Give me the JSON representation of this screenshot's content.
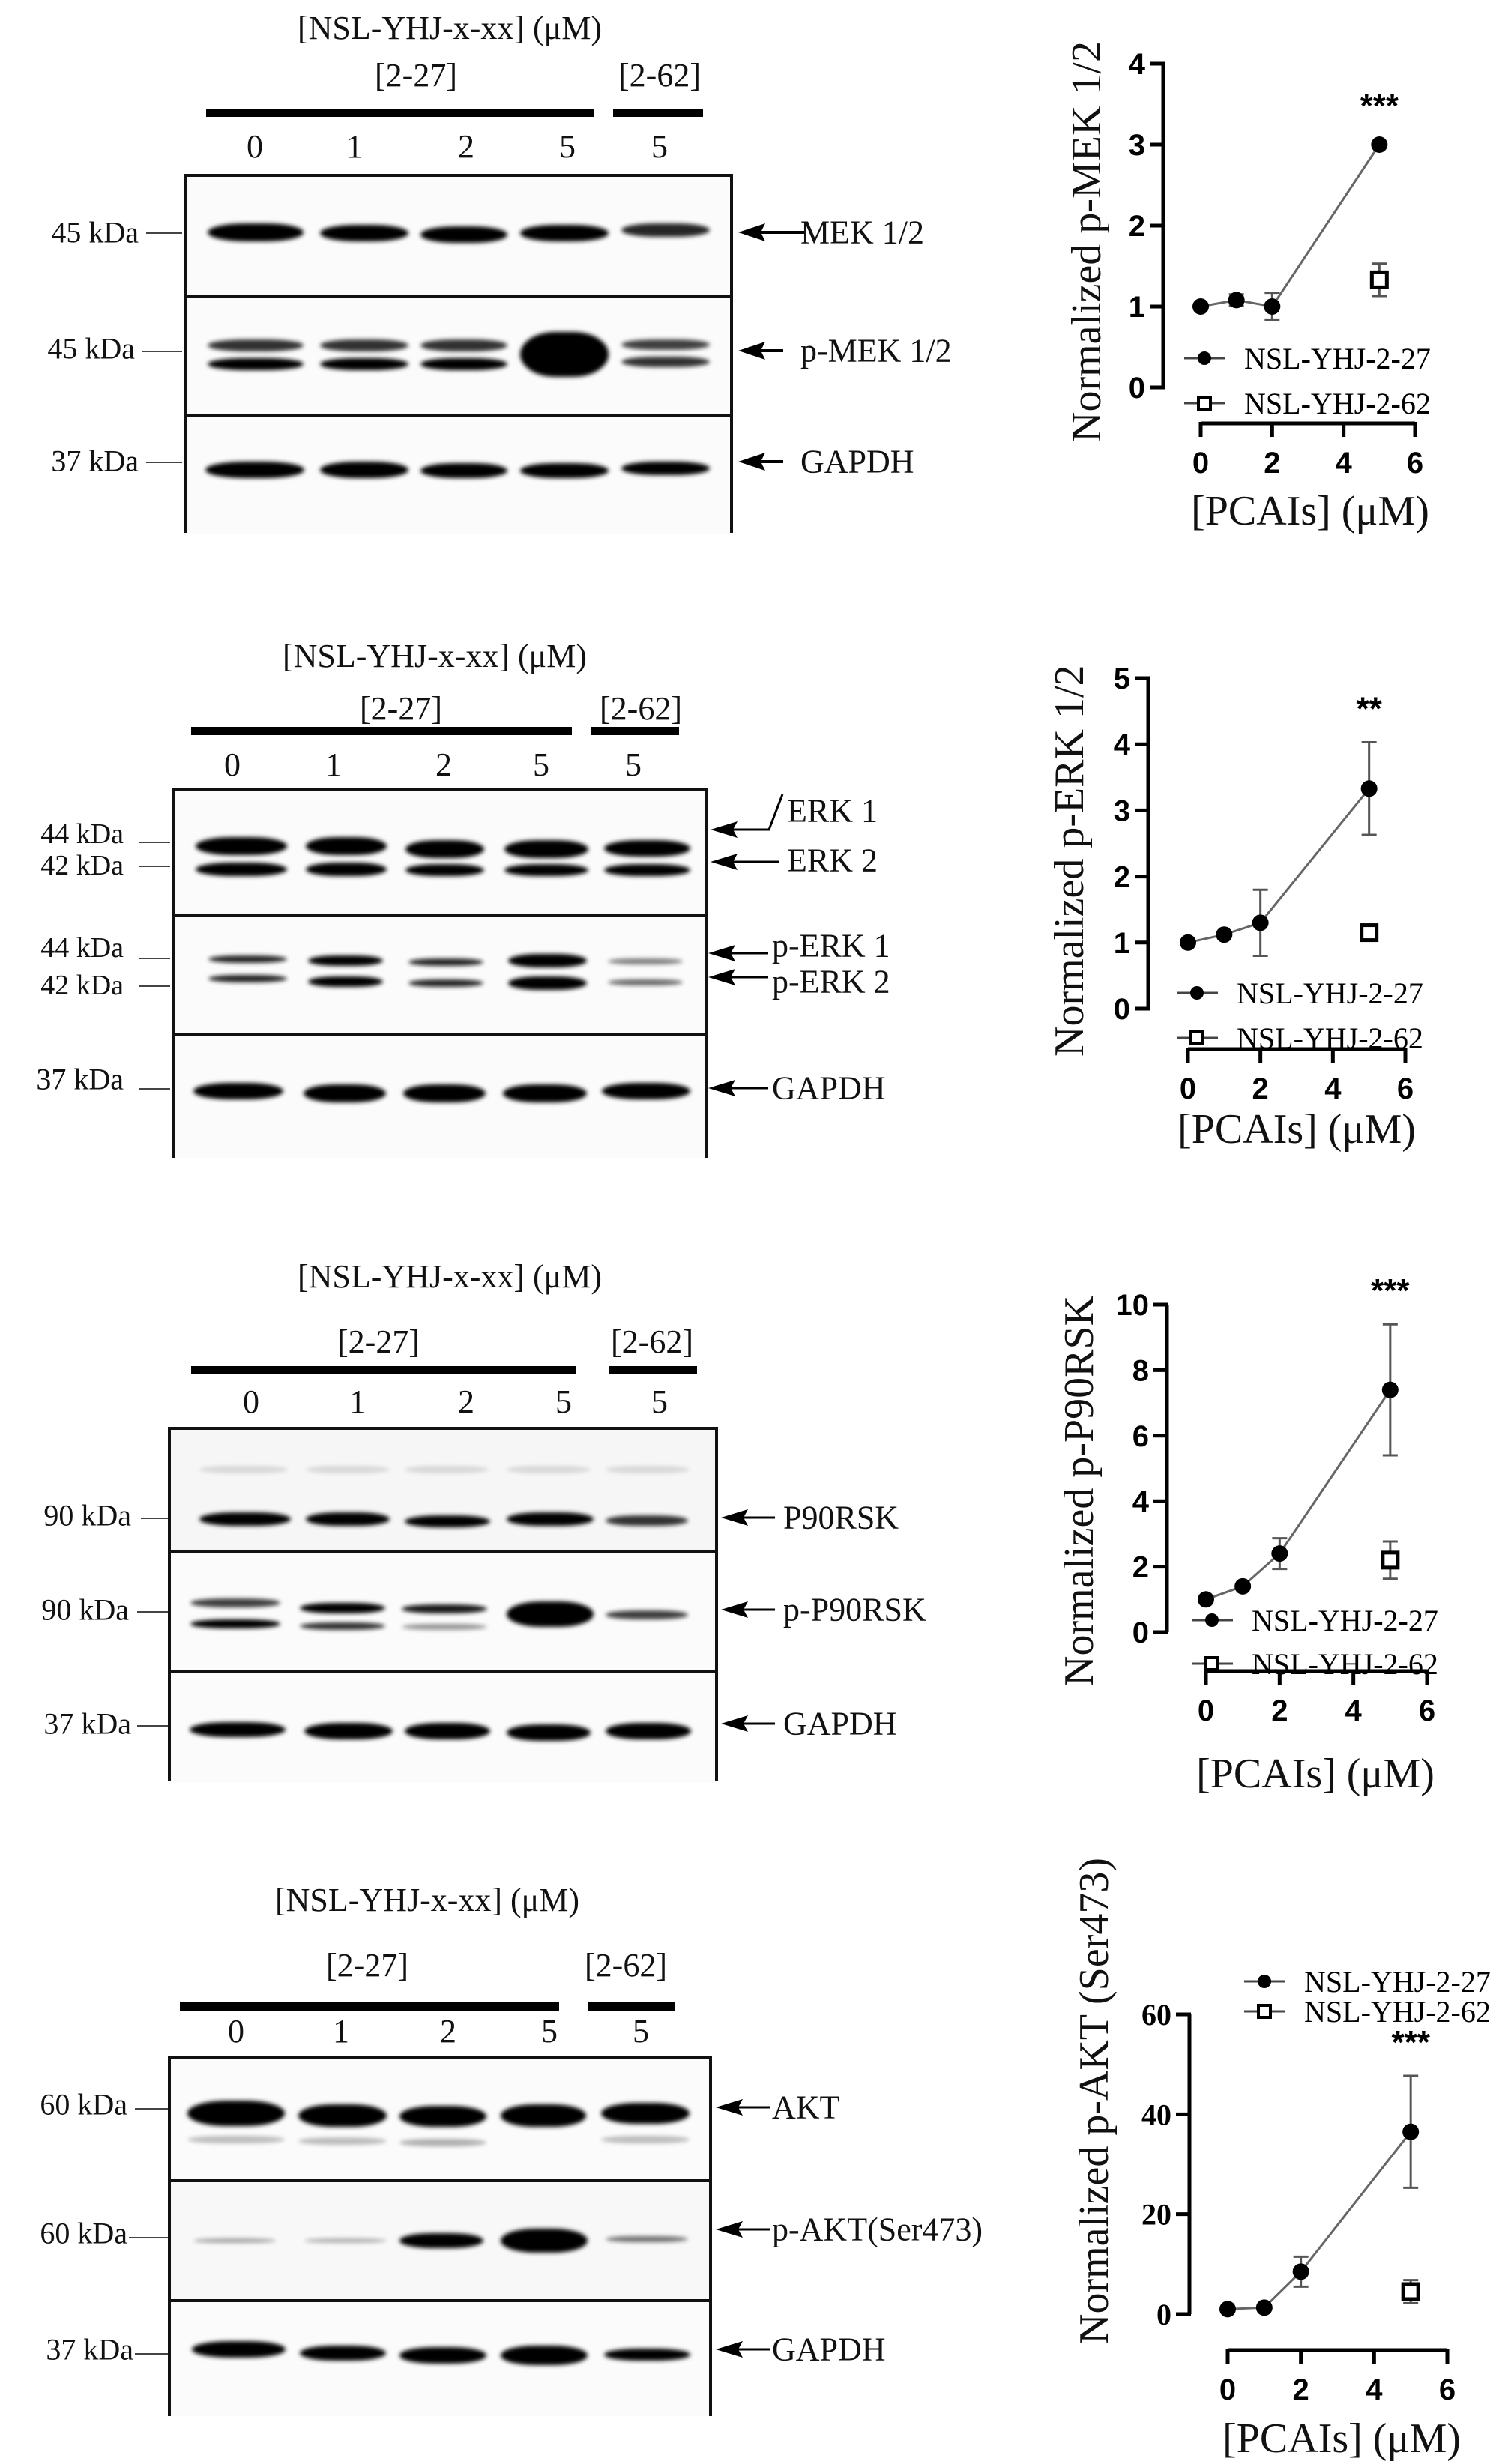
{
  "common": {
    "compound_header": "[NSL-YHJ-x-xx] (μM)",
    "group_a": "[2-27]",
    "group_b": "[2-62]",
    "lanes": [
      "0",
      "1",
      "2",
      "5",
      "5"
    ],
    "x_axis_label": "[PCAIs] (μM)",
    "legend": [
      "NSL-YHJ-2-27",
      "NSL-YHJ-2-62"
    ]
  },
  "panels": [
    {
      "id": "mek",
      "kda": [
        "45 kDa",
        "45 kDa",
        "37 kDa"
      ],
      "proteins": [
        "MEK 1/2",
        "p-MEK 1/2",
        "GAPDH"
      ]
    },
    {
      "id": "erk",
      "kda": [
        "44 kDa",
        "42 kDa",
        "44 kDa",
        "42 kDa",
        "37 kDa"
      ],
      "proteins": [
        "ERK 1",
        "ERK 2",
        "p-ERK 1",
        "p-ERK 2",
        "GAPDH"
      ]
    },
    {
      "id": "p90rsk",
      "kda": [
        "90 kDa",
        "90 kDa",
        "37 kDa"
      ],
      "proteins": [
        "P90RSK",
        "p-P90RSK",
        "GAPDH"
      ]
    },
    {
      "id": "akt",
      "kda": [
        "60 kDa",
        "60 kDa",
        "37 kDa"
      ],
      "proteins": [
        "AKT",
        "p-AKT(Ser473)",
        "GAPDH"
      ]
    }
  ],
  "chart_data": [
    {
      "type": "line",
      "title": "",
      "xlabel": "[PCAIs] (μM)",
      "ylabel": "Normalized p-MEK 1/2",
      "xlim": [
        0,
        6
      ],
      "xticks": [
        0,
        2,
        4,
        6
      ],
      "ylim": [
        0,
        4
      ],
      "yticks": [
        0,
        1,
        2,
        3,
        4
      ],
      "significance": {
        "x": 5,
        "label": "***"
      },
      "series": [
        {
          "name": "NSL-YHJ-2-27",
          "marker": "filled-circle",
          "x": [
            0,
            1,
            2,
            5
          ],
          "y": [
            1.0,
            1.08,
            1.0,
            3.0
          ],
          "err": [
            0,
            0.07,
            0.17,
            0.02
          ]
        },
        {
          "name": "NSL-YHJ-2-62",
          "marker": "open-square",
          "x": [
            5
          ],
          "y": [
            1.33
          ],
          "err": [
            0.2
          ]
        }
      ],
      "legend_position": "lower-left"
    },
    {
      "type": "line",
      "title": "",
      "xlabel": "[PCAIs] (μM)",
      "ylabel": "Normalized p-ERK 1/2",
      "xlim": [
        0,
        6
      ],
      "xticks": [
        0,
        2,
        4,
        6
      ],
      "ylim": [
        0,
        5
      ],
      "yticks": [
        0,
        1,
        2,
        3,
        4,
        5
      ],
      "significance": {
        "x": 5,
        "label": "**"
      },
      "series": [
        {
          "name": "NSL-YHJ-2-27",
          "marker": "filled-circle",
          "x": [
            0,
            1,
            2,
            5
          ],
          "y": [
            1.0,
            1.12,
            1.3,
            3.33
          ],
          "err": [
            0,
            0.03,
            0.5,
            0.7
          ]
        },
        {
          "name": "NSL-YHJ-2-62",
          "marker": "open-square",
          "x": [
            5
          ],
          "y": [
            1.15
          ],
          "err": [
            0.05
          ]
        }
      ],
      "legend_position": "lower-left"
    },
    {
      "type": "line",
      "title": "",
      "xlabel": "[PCAIs] (μM)",
      "ylabel": "Normalized p-P90RSK",
      "xlim": [
        0,
        6
      ],
      "xticks": [
        0,
        2,
        4,
        6
      ],
      "ylim": [
        0,
        10
      ],
      "yticks": [
        0,
        2,
        4,
        6,
        8,
        10
      ],
      "significance": {
        "x": 5,
        "label": "***"
      },
      "series": [
        {
          "name": "NSL-YHJ-2-27",
          "marker": "filled-circle",
          "x": [
            0,
            1,
            2,
            5
          ],
          "y": [
            1.0,
            1.4,
            2.4,
            7.4
          ],
          "err": [
            0,
            0.05,
            0.47,
            2.0
          ]
        },
        {
          "name": "NSL-YHJ-2-62",
          "marker": "open-square",
          "x": [
            5
          ],
          "y": [
            2.2
          ],
          "err": [
            0.57
          ]
        }
      ],
      "legend_position": "lower-left"
    },
    {
      "type": "line",
      "title": "",
      "xlabel": "[PCAIs] (μM)",
      "ylabel": "Normalized p-AKT (Ser473)",
      "xlim": [
        0,
        6
      ],
      "xticks": [
        0,
        2,
        4,
        6
      ],
      "ylim": [
        0,
        60
      ],
      "yticks": [
        0,
        20,
        40,
        60
      ],
      "significance": {
        "x": 5,
        "label": "***"
      },
      "series": [
        {
          "name": "NSL-YHJ-2-27",
          "marker": "filled-circle",
          "x": [
            0,
            1,
            2,
            5
          ],
          "y": [
            1.0,
            1.3,
            8.5,
            36.5
          ],
          "err": [
            0,
            0.2,
            3.0,
            11.2
          ]
        },
        {
          "name": "NSL-YHJ-2-62",
          "marker": "open-square",
          "x": [
            5
          ],
          "y": [
            4.5
          ],
          "err": [
            2.3
          ]
        }
      ],
      "legend_position": "upper-right"
    }
  ]
}
